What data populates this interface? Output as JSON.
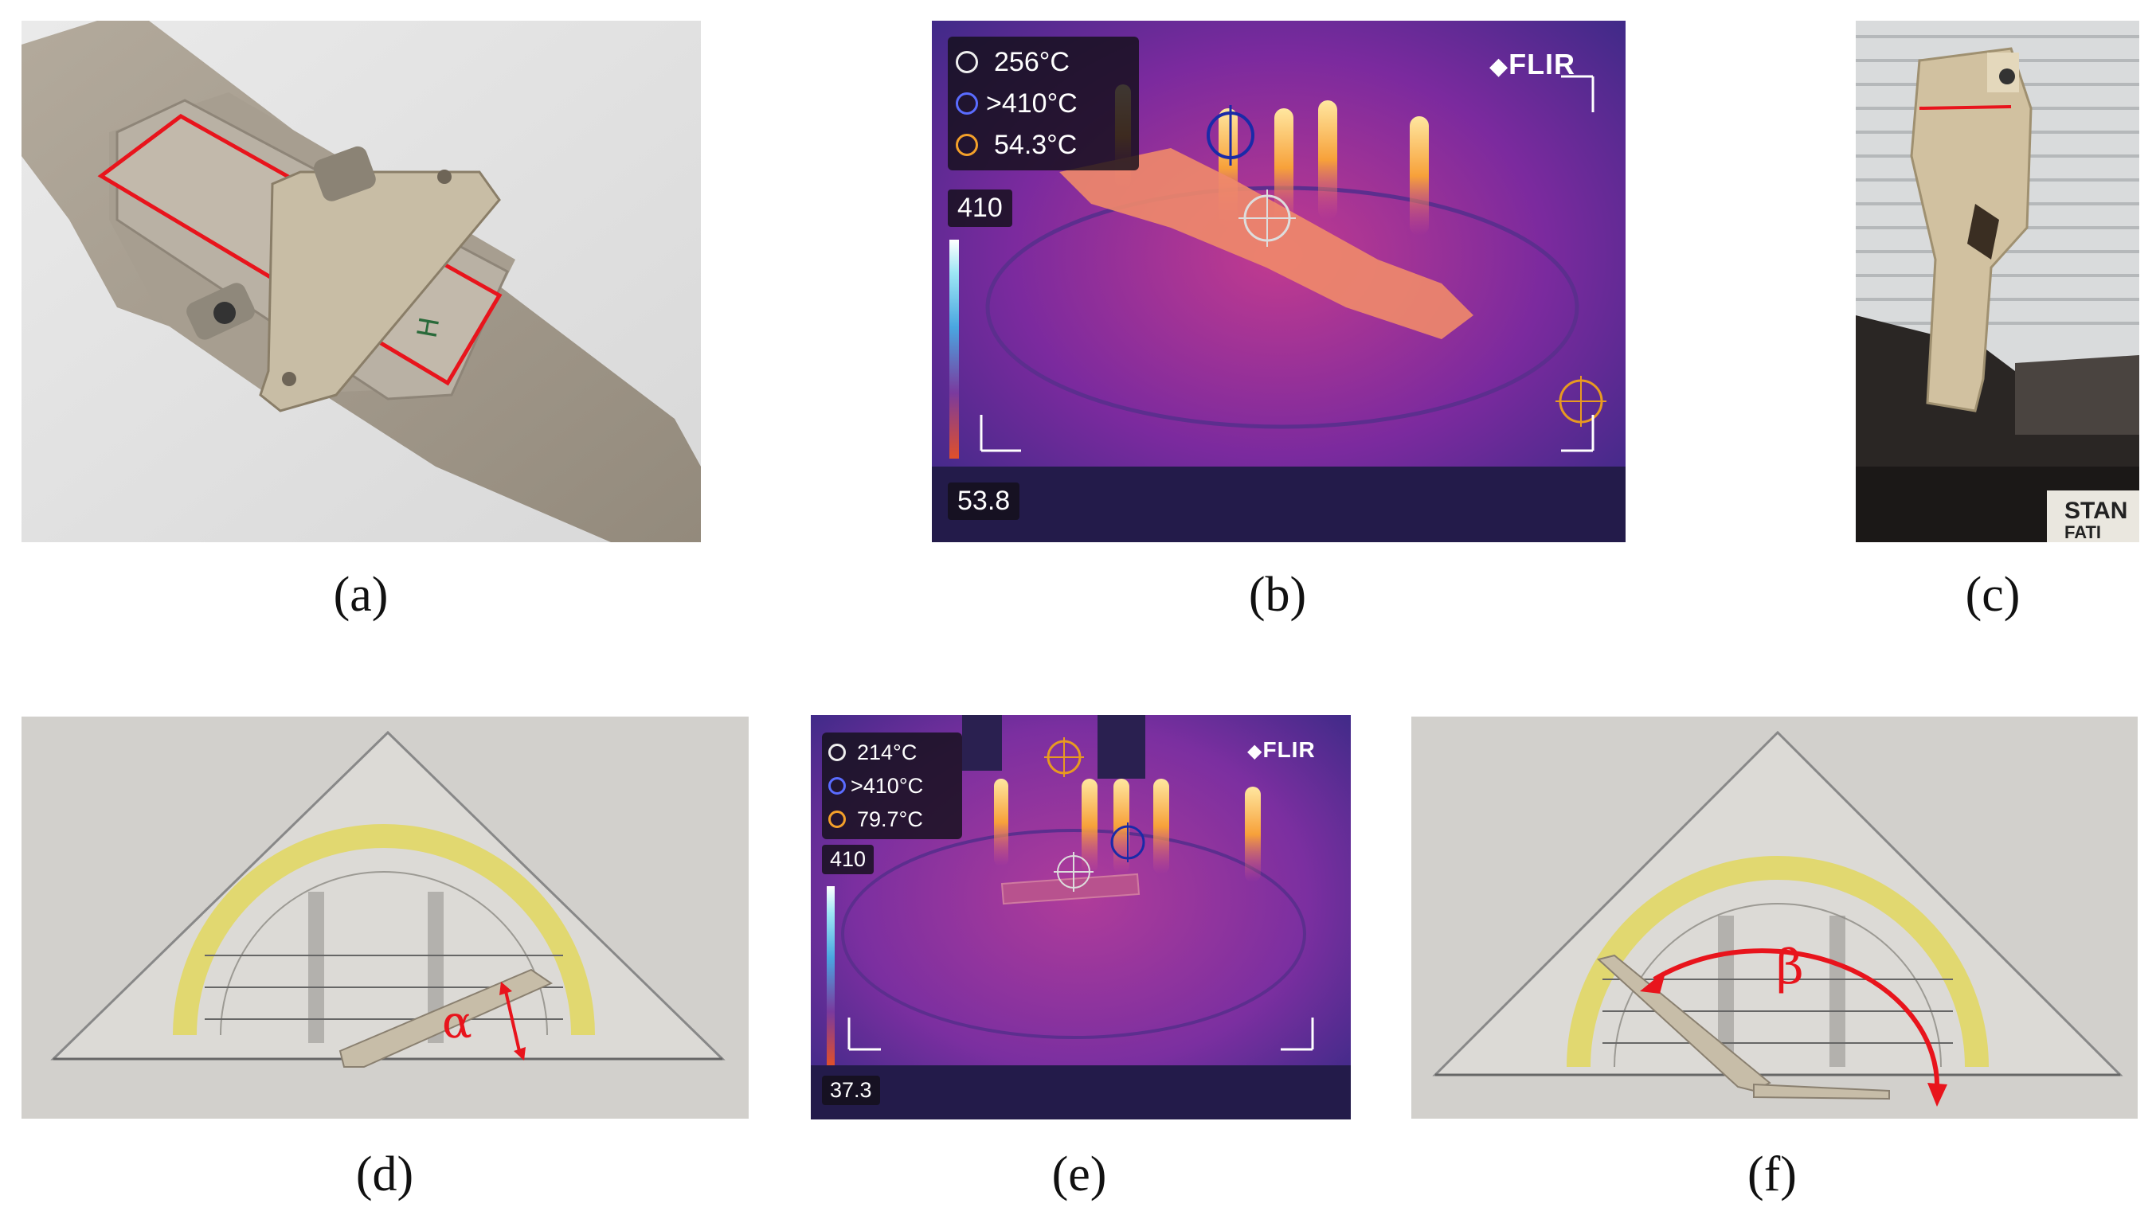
{
  "captions": {
    "a": "(a)",
    "b": "(b)",
    "c": "(c)",
    "d": "(d)",
    "e": "(e)",
    "f": "(f)"
  },
  "thermal_b": {
    "readings": [
      {
        "marker": "white-crosshair",
        "text": "256°C"
      },
      {
        "marker": "blue-crosshair",
        "text": ">410°C"
      },
      {
        "marker": "orange-crosshair",
        "text": "54.3°C"
      }
    ],
    "scale_max": "410",
    "scale_min": "53.8",
    "logo": "FLIR"
  },
  "thermal_e": {
    "readings": [
      {
        "marker": "white-crosshair",
        "text": "214°C"
      },
      {
        "marker": "blue-crosshair",
        "text": ">410°C"
      },
      {
        "marker": "orange-crosshair",
        "text": "79.7°C"
      }
    ],
    "scale_max": "410",
    "scale_min": "37.3",
    "logo": "FLIR"
  },
  "angle_d": "α",
  "angle_f": "β",
  "vise_label_line1": "STAN",
  "vise_label_line2": "FATI",
  "specimen_mark": "H",
  "colors": {
    "highlight_red": "#e8141c",
    "specimen_tan": "#c9b99a",
    "plate_beige": "#a89e90"
  }
}
